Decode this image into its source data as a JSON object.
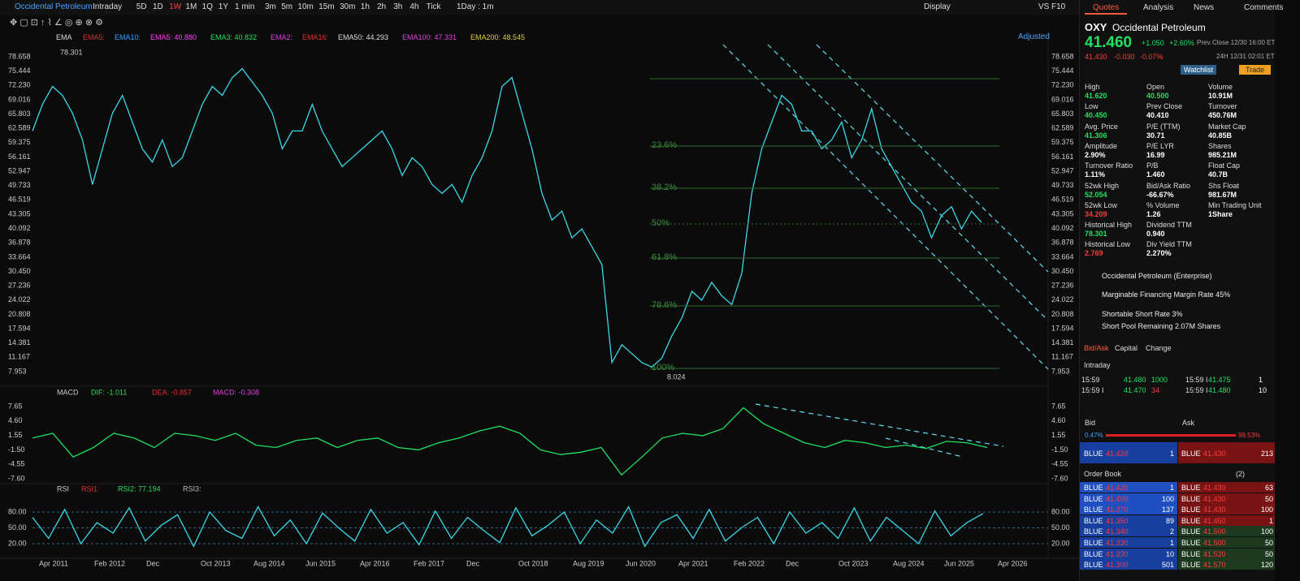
{
  "toolbar": {
    "symbol": "Occidental Petroleum",
    "periods": [
      "Intraday",
      "5D",
      "1D",
      "1W",
      "1M",
      "1Q",
      "1Y",
      "1 min",
      "3m",
      "5m",
      "10m",
      "15m",
      "30m",
      "1h",
      "2h",
      "3h",
      "4h",
      "Tick"
    ],
    "active": 3,
    "interval": "1Day : 1m",
    "display": "Display",
    "compare": "VS",
    "f10": "F10"
  },
  "ema_legend": {
    "label": "EMA",
    "items": [
      {
        "text": "EMA5:",
        "color": "#e03030"
      },
      {
        "text": "EMA10:",
        "color": "#3aa0ff"
      },
      {
        "text": "EMA5: 40.880",
        "color": "#ff40ff"
      },
      {
        "text": "EMA3: 40.832",
        "color": "#20e060"
      },
      {
        "text": "EMA2:",
        "color": "#e040e0"
      },
      {
        "text": "EMA16:",
        "color": "#e03030"
      },
      {
        "text": "EMA50: 44.293",
        "color": "#dddddd"
      },
      {
        "text": "EMA100: 47.331",
        "color": "#e040e0"
      },
      {
        "text": "EMA200: 48.545",
        "color": "#e0d040"
      }
    ],
    "adjusted": "Adjusted"
  },
  "price_chart": {
    "type": "line",
    "color": "#3ad8e8",
    "ylim": [
      7.953,
      78.658
    ],
    "yticks": [
      78.658,
      75.444,
      {
        "value": 72.23,
        "label": "72.230"
      },
      69.016,
      65.803,
      62.589,
      59.375,
      56.161,
      52.947,
      49.733,
      46.519,
      43.305,
      40.092,
      36.878,
      33.664,
      {
        "value": 30.45,
        "label": "30.450"
      },
      27.236,
      24.022,
      20.808,
      17.594,
      14.381,
      11.167,
      7.953
    ],
    "x_labels": [
      "Apr 2011",
      "Feb 2012",
      "Dec",
      "Oct 2013",
      "Aug 2014",
      "Jun 2015",
      "Apr 2016",
      "Feb 2017",
      "Dec",
      "Oct 2018",
      "Aug 2019",
      "Jun 2020",
      "Apr 2021",
      "Feb 2022",
      "Dec",
      "Oct 2023",
      "Aug 2024",
      "Jun 2025",
      "Apr 2026"
    ],
    "annotations": {
      "high": "78.301",
      "low": "8.024"
    },
    "fib_levels": [
      "23.6%",
      "38.2%",
      "50%",
      "61.8%",
      "78.6%",
      "100%"
    ],
    "values": [
      62,
      68,
      72,
      70,
      66,
      60,
      50,
      58,
      66,
      70,
      64,
      58,
      55,
      60,
      54,
      56,
      62,
      68,
      72,
      70,
      74,
      76,
      73,
      70,
      66,
      58,
      62,
      62,
      68,
      62,
      58,
      54,
      56,
      58,
      60,
      62,
      58,
      52,
      56,
      54,
      50,
      48,
      50,
      46,
      52,
      56,
      62,
      72,
      74,
      66,
      58,
      48,
      42,
      44,
      38,
      40,
      36,
      32,
      10,
      14,
      12,
      10,
      9,
      11,
      16,
      20,
      26,
      24,
      28,
      25,
      23,
      30,
      48,
      58,
      64,
      70,
      68,
      62,
      62,
      58,
      60,
      64,
      56,
      60,
      67,
      58,
      54,
      50,
      46,
      44,
      38,
      43,
      45,
      40,
      44,
      41.46
    ]
  },
  "macd": {
    "type": "line",
    "label": "MACD",
    "color": "#20e060",
    "legend": [
      {
        "text": "DIF: -1.011",
        "color": "#20e060"
      },
      {
        "text": "DEA: -0.857",
        "color": "#e03030"
      },
      {
        "text": "MACD: -0.308",
        "color": "#e040e0"
      }
    ],
    "ylim": [
      -7.6,
      7.65
    ],
    "yticks": [
      7.65,
      {
        "value": 4.6,
        "label": "4.60"
      },
      1.55,
      {
        "value": -1.5,
        "label": "-1.50"
      },
      -4.55,
      {
        "value": -7.6,
        "label": "-7.60"
      }
    ],
    "values": [
      1,
      2,
      -3,
      -1,
      2,
      1,
      -1,
      2,
      1.5,
      0.5,
      2,
      -0.5,
      -1,
      0.5,
      1,
      -1,
      0.5,
      1,
      -1,
      -1.5,
      0,
      1,
      2.5,
      3.5,
      2,
      -1.5,
      -2.5,
      -2,
      -1,
      -6.8,
      -3,
      1,
      2,
      1.5,
      3,
      7.4,
      4,
      2,
      0,
      -1,
      0.5,
      0,
      -1,
      -0.5,
      -1.2,
      0.3,
      0,
      -1.011
    ]
  },
  "rsi": {
    "type": "line",
    "label": "RSI",
    "color": "#3ad8e8",
    "legend": [
      {
        "text": "RSI1:",
        "color": "#e03030"
      },
      {
        "text": "RSI2: 77.194",
        "color": "#20e060"
      },
      {
        "text": "RSI3:",
        "color": "#bbbbbb"
      }
    ],
    "ylim": [
      0,
      100
    ],
    "yticks": [
      {
        "value": 80,
        "label": "80.00"
      },
      {
        "value": 50,
        "label": "50.00"
      },
      {
        "value": 20,
        "label": "20.00"
      }
    ],
    "values": [
      70,
      30,
      85,
      20,
      60,
      40,
      88,
      25,
      55,
      75,
      15,
      80,
      45,
      30,
      90,
      35,
      65,
      20,
      78,
      50,
      25,
      85,
      40,
      60,
      18,
      82,
      30,
      70,
      45,
      22,
      88,
      35,
      55,
      80,
      20,
      65,
      40,
      90,
      15,
      60,
      75,
      30,
      85,
      25,
      50,
      70,
      20,
      80,
      40,
      60,
      30,
      88,
      25,
      70,
      45,
      20,
      82,
      35,
      60,
      77.194
    ]
  },
  "quote": {
    "tabs": [
      "Quotes",
      "Analysis",
      "News",
      "Comments"
    ],
    "ticker": "OXY",
    "name": "Occidental Petroleum",
    "price": "41.460",
    "change": "+1.050",
    "change_pct": "+2.60%",
    "prev": "Prev.",
    "close_time": "Close 12/30 16:00 ET",
    "ah_price": "41.430",
    "ah_change": "-0.030",
    "ah_change_pct": "-0.07%",
    "ah_time": "24H 12/31 02:01 ET",
    "watchlist": "Watchlist",
    "trade": "Trade",
    "stats": [
      [
        {
          "label": "High",
          "value": "41.620",
          "color": "#20e060"
        },
        {
          "label": "Open",
          "value": "40.500",
          "color": "#20e060"
        },
        {
          "label": "Volume",
          "value": "10.91M",
          "color": "#ffffff"
        }
      ],
      [
        {
          "label": "Low",
          "value": "40.450",
          "color": "#20e060"
        },
        {
          "label": "Prev Close",
          "value": "40.410",
          "color": "#ffffff"
        },
        {
          "label": "Turnover",
          "value": "450.76M",
          "color": "#ffffff"
        }
      ],
      [
        {
          "label": "Avg. Price",
          "value": "41.306",
          "color": "#20e060"
        },
        {
          "label": "P/E (TTM)",
          "value": "30.71",
          "color": "#ffffff"
        },
        {
          "label": "Market Cap",
          "value": "40.85B",
          "color": "#ffffff"
        }
      ],
      [
        {
          "label": "Amplitude",
          "value": "2.90%",
          "color": "#ffffff"
        },
        {
          "label": "P/E LYR",
          "value": "16.99",
          "color": "#ffffff"
        },
        {
          "label": "Shares",
          "value": "985.21M",
          "color": "#ffffff"
        }
      ],
      [
        {
          "label": "Turnover Ratio",
          "value": "1.11%",
          "color": "#ffffff"
        },
        {
          "label": "P/B",
          "value": "1.460",
          "color": "#ffffff"
        },
        {
          "label": "Float Cap",
          "value": "40.7B",
          "color": "#ffffff"
        }
      ],
      [
        {
          "label": "52wk High",
          "value": "52.054",
          "color": "#20e060"
        },
        {
          "label": "Bid/Ask Ratio",
          "value": "-66.67%",
          "color": "#ffffff"
        },
        {
          "label": "Shs Float",
          "value": "981.67M",
          "color": "#ffffff"
        }
      ],
      [
        {
          "label": "52wk Low",
          "value": "34.209",
          "color": "#ff3b3b"
        },
        {
          "label": "% Volume",
          "value": "1.26",
          "color": "#ffffff"
        },
        {
          "label": "Min Trading Unit",
          "value": "1Share",
          "color": "#ffffff"
        }
      ],
      [
        {
          "label": "Historical High",
          "value": "78.301",
          "color": "#20e060"
        },
        {
          "label": "Dividend TTM",
          "value": "0.940",
          "color": "#ffffff"
        }
      ],
      [
        {
          "label": "Historical Low",
          "value": "2.769",
          "color": "#ff3b3b"
        },
        {
          "label": "Div Yield TTM",
          "value": "2.270%",
          "color": "#ffffff"
        }
      ]
    ],
    "links": [
      "Occidental Petroleum (Enterprise)",
      "Marginable Financing Margin Rate 45%",
      "Shortable Short Rate 3%",
      "Short Pool Remaining 2.07M Shares"
    ],
    "sub_tabs": [
      "Bid/Ask",
      "Capital",
      "Change"
    ],
    "intraday": "Intraday",
    "trades": [
      [
        "15:59",
        "41.480",
        "1000",
        "15:59 I",
        "41.475",
        "1"
      ],
      [
        "15:59 I",
        "41.470",
        "34",
        "15:59 I",
        "41.480",
        "10"
      ]
    ],
    "bid": "Bid",
    "ask": "Ask",
    "bid_pct": "0.47%",
    "ask_pct": "99.53%",
    "best": [
      "BLUE",
      "41.420",
      "1",
      "BLUE",
      "41.430",
      "213"
    ],
    "order_book": "Order Book",
    "ob_count": "(2)",
    "book": [
      [
        "BLUE",
        "41.420",
        "1",
        "BLUE",
        "41.430",
        "63"
      ],
      [
        "BLUE",
        "41.400",
        "100",
        "BLUE",
        "41.430",
        "50"
      ],
      [
        "BLUE",
        "41.370",
        "137",
        "BLUE",
        "41.430",
        "100"
      ],
      [
        "BLUE",
        "41.350",
        "89",
        "BLUE",
        "41.450",
        "1"
      ],
      [
        "BLUE",
        "41.340",
        "2",
        "BLUE",
        "41.500",
        "100"
      ],
      [
        "BLUE",
        "41.330",
        "1",
        "BLUE",
        "41.500",
        "50"
      ],
      [
        "BLUE",
        "41.330",
        "10",
        "BLUE",
        "41.520",
        "50"
      ],
      [
        "BLUE",
        "41.300",
        "501",
        "BLUE",
        "41.570",
        "120"
      ]
    ]
  }
}
